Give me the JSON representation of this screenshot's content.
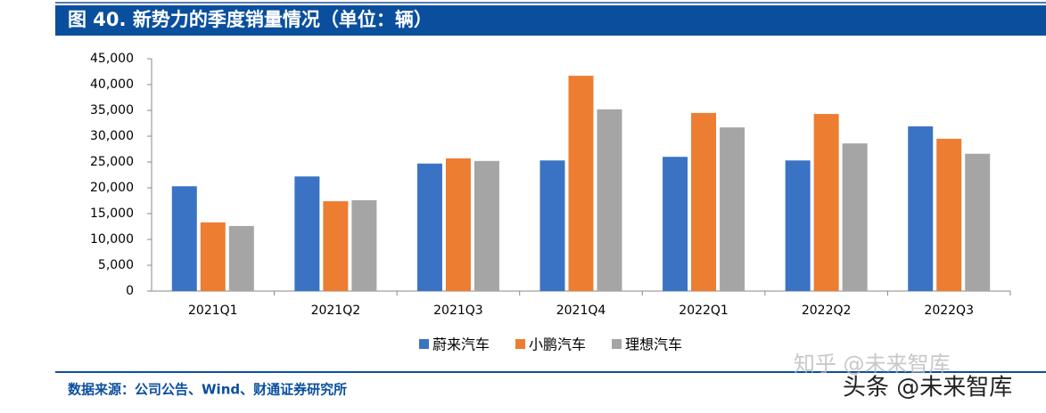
{
  "header": {
    "title": "图 40. 新势力的季度销量情况（单位：辆）"
  },
  "chart_data": {
    "type": "bar",
    "categories": [
      "2021Q1",
      "2021Q2",
      "2021Q3",
      "2021Q4",
      "2022Q1",
      "2022Q2",
      "2022Q3"
    ],
    "series": [
      {
        "name": "蔚来汽车",
        "color": "#3b73c4",
        "values": [
          20300,
          22200,
          24700,
          25300,
          26000,
          25300,
          31900
        ]
      },
      {
        "name": "小鹏汽车",
        "color": "#ed7d31",
        "values": [
          13300,
          17400,
          25700,
          41700,
          34500,
          34300,
          29500
        ]
      },
      {
        "name": "理想汽车",
        "color": "#a5a5a5",
        "values": [
          12600,
          17600,
          25200,
          35200,
          31700,
          28600,
          26600
        ]
      }
    ],
    "ylim": [
      0,
      45000
    ],
    "yticks": [
      0,
      {
        "value": 5000,
        "label": "5,000"
      },
      {
        "value": 10000,
        "label": "10,000"
      },
      {
        "value": 15000,
        "label": "15,000"
      },
      {
        "value": 20000,
        "label": "20,000"
      },
      {
        "value": 25000,
        "label": "25,000"
      },
      {
        "value": 30000,
        "label": "30,000"
      },
      {
        "value": 35000,
        "label": "35,000"
      },
      {
        "value": 40000,
        "label": "40,000"
      },
      {
        "value": 45000,
        "label": "45,000"
      }
    ],
    "grid": false,
    "legend": "bottom"
  },
  "footer": {
    "source": "数据来源：公司公告、Wind、财通证券研究所"
  },
  "watermarks": [
    "知乎 @未来智库",
    "头条 @未来智库"
  ]
}
